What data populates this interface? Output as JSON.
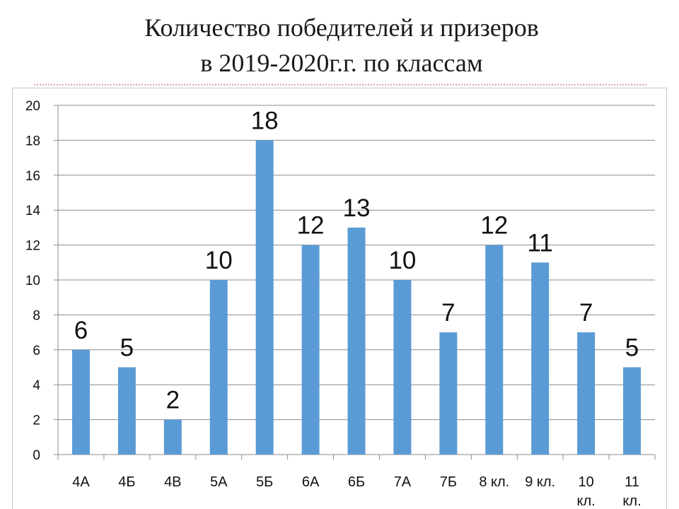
{
  "slide": {
    "title_line1": "Количество победителей и призеров",
    "title_line2": "в 2019-2020г.г. по классам"
  },
  "chart_data": {
    "type": "bar",
    "title": "",
    "xlabel": "",
    "ylabel": "",
    "categories": [
      "4А",
      "4Б",
      "4В",
      "5А",
      "5Б",
      "6А",
      "6Б",
      "7А",
      "7Б",
      "8 кл.",
      "9 кл.",
      "10 кл.",
      "11 кл."
    ],
    "values": [
      6,
      5,
      2,
      10,
      18,
      12,
      13,
      10,
      7,
      12,
      11,
      7,
      5
    ],
    "ylim": [
      0,
      20
    ],
    "yticks": [
      0,
      2,
      4,
      6,
      8,
      10,
      12,
      14,
      16,
      18,
      20
    ],
    "grid": true,
    "legend": "none",
    "data_labels": true,
    "bar_color": "#5b9bd5",
    "grid_color": "#8c8c8c"
  }
}
